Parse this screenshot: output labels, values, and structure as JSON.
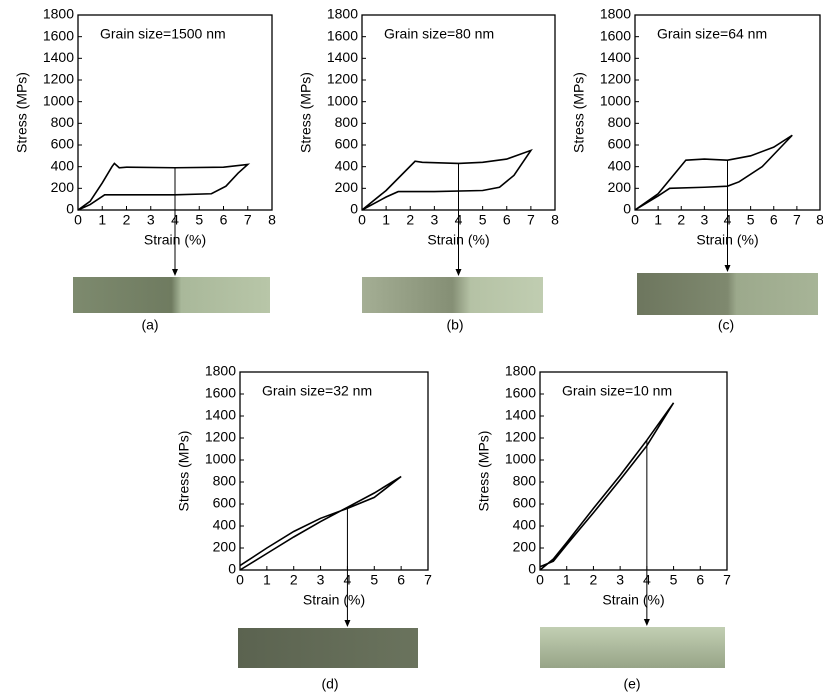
{
  "chart_data": [
    {
      "type": "line",
      "title": "Grain size=1500 nm",
      "xlabel": "Strain (%)",
      "ylabel": "Stress (MPs)",
      "label": "(a)",
      "xlim": [
        0,
        8
      ],
      "ylim": [
        0,
        1800
      ],
      "xticks": [
        0,
        1,
        2,
        3,
        4,
        5,
        6,
        7,
        8
      ],
      "yticks": [
        0,
        200,
        400,
        600,
        800,
        1000,
        1200,
        1400,
        1600,
        1800
      ],
      "x": [
        0,
        0.5,
        1.0,
        1.4,
        1.5,
        1.7,
        2,
        4,
        6,
        7,
        6.6,
        6.1,
        5.5,
        4,
        2,
        1.1,
        0.5,
        0
      ],
      "series": [
        {
          "color": "#000000",
          "values": [
            0,
            80,
            250,
            400,
            430,
            390,
            395,
            390,
            395,
            420,
            340,
            220,
            150,
            140,
            140,
            140,
            50,
            0
          ]
        }
      ],
      "vline": 4
    },
    {
      "type": "line",
      "title": "Grain size=80 nm",
      "xlabel": "Strain (%)",
      "ylabel": "Stress (MPs)",
      "label": "(b)",
      "xlim": [
        0,
        8
      ],
      "ylim": [
        0,
        1800
      ],
      "xticks": [
        0,
        1,
        2,
        3,
        4,
        5,
        6,
        7,
        8
      ],
      "yticks": [
        0,
        200,
        400,
        600,
        800,
        1000,
        1200,
        1400,
        1600,
        1800
      ],
      "x": [
        0,
        1,
        2.2,
        2.5,
        4,
        5,
        6,
        7,
        6.3,
        5.7,
        5,
        3,
        1.5,
        1,
        0
      ],
      "series": [
        {
          "color": "#000000",
          "values": [
            0,
            180,
            450,
            440,
            430,
            440,
            470,
            550,
            320,
            210,
            180,
            170,
            170,
            120,
            0
          ]
        }
      ],
      "vline": 4
    },
    {
      "type": "line",
      "title": "Grain size=64 nm",
      "xlabel": "Strain (%)",
      "ylabel": "Stress (MPs)",
      "label": "(c)",
      "xlim": [
        0,
        8
      ],
      "ylim": [
        0,
        1800
      ],
      "xticks": [
        0,
        1,
        2,
        3,
        4,
        5,
        6,
        7,
        8
      ],
      "yticks": [
        0,
        200,
        400,
        600,
        800,
        1000,
        1200,
        1400,
        1600,
        1800
      ],
      "x": [
        0,
        1,
        2.2,
        3,
        4,
        5,
        6,
        6.8,
        5.5,
        4.5,
        4,
        3,
        1.5,
        1,
        0
      ],
      "series": [
        {
          "color": "#000000",
          "values": [
            0,
            150,
            460,
            470,
            460,
            500,
            580,
            690,
            400,
            260,
            220,
            210,
            200,
            130,
            0
          ]
        }
      ],
      "vline": 4
    },
    {
      "type": "line",
      "title": "Grain size=32 nm",
      "xlabel": "Strain (%)",
      "ylabel": "Stress (MPs)",
      "label": "(d)",
      "xlim": [
        0,
        7
      ],
      "ylim": [
        0,
        1800
      ],
      "xticks": [
        0,
        1,
        2,
        3,
        4,
        5,
        6,
        7
      ],
      "yticks": [
        0,
        200,
        400,
        600,
        800,
        1000,
        1200,
        1400,
        1600,
        1800
      ],
      "x": [
        0,
        1,
        2,
        3,
        4,
        5,
        6,
        5,
        4,
        3,
        2,
        1,
        0
      ],
      "series": [
        {
          "color": "#000000",
          "values": [
            40,
            200,
            350,
            470,
            560,
            660,
            850,
            700,
            570,
            440,
            300,
            150,
            0
          ]
        }
      ],
      "vline": 4
    },
    {
      "type": "line",
      "title": "Grain size=10 nm",
      "xlabel": "Strain (%)",
      "ylabel": "Stress (MPs)",
      "label": "(e)",
      "xlim": [
        0,
        7
      ],
      "ylim": [
        0,
        1800
      ],
      "xticks": [
        0,
        1,
        2,
        3,
        4,
        5,
        6,
        7
      ],
      "yticks": [
        0,
        200,
        400,
        600,
        800,
        1000,
        1200,
        1400,
        1600,
        1800
      ],
      "x": [
        0,
        0.5,
        1,
        2,
        3,
        4,
        5,
        4,
        3,
        2,
        1,
        0.5,
        0
      ],
      "series": [
        {
          "color": "#000000",
          "values": [
            0,
            100,
            250,
            560,
            860,
            1180,
            1520,
            1130,
            820,
            520,
            230,
            80,
            30
          ]
        }
      ],
      "vline": 4
    }
  ]
}
